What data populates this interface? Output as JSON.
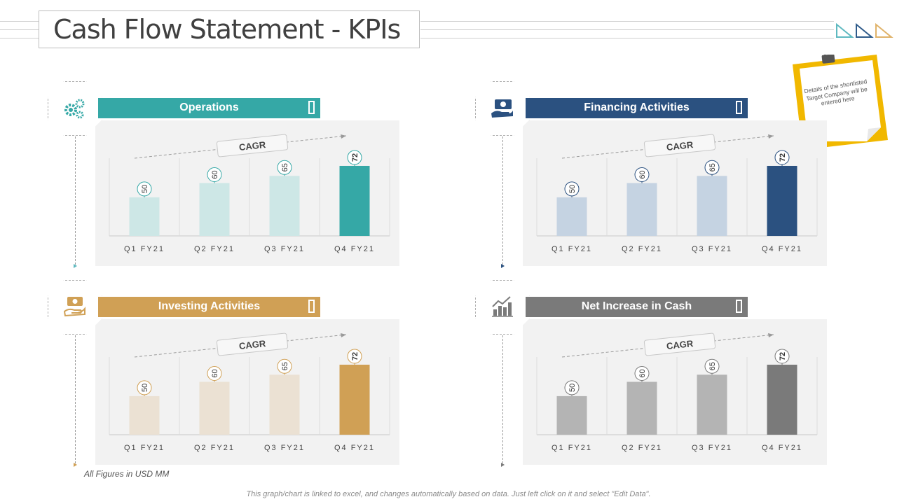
{
  "title": "Cash Flow Statement - KPIs",
  "sticky_note": "Details of the shortlisted Target Company will be entered here",
  "units_note": "All Figures in USD MM",
  "footer_note": "This graph/chart is linked to excel, and changes automatically based on data. Just left click on it and select \"Edit Data\".",
  "decor_colors": [
    "#5fb9c0",
    "#2f5b8a",
    "#e0b36a"
  ],
  "chart_data": [
    {
      "type": "bar",
      "title": "Operations",
      "categories": [
        "Q1 FY21",
        "Q2 FY21",
        "Q3 FY21",
        "Q4 FY21"
      ],
      "values": [
        50,
        60,
        65,
        72
      ],
      "annotation": "CAGR",
      "ylim": [
        0,
        80
      ],
      "color_main": "#35a8a6",
      "color_light": "#cde7e6",
      "icon": "gears-icon"
    },
    {
      "type": "bar",
      "title": "Financing Activities",
      "categories": [
        "Q1 FY21",
        "Q2 FY21",
        "Q3 FY21",
        "Q4 FY21"
      ],
      "values": [
        50,
        60,
        65,
        72
      ],
      "annotation": "CAGR",
      "ylim": [
        0,
        80
      ],
      "color_main": "#2b5180",
      "color_light": "#c5d3e2",
      "icon": "money-hand-icon"
    },
    {
      "type": "bar",
      "title": "Investing Activities",
      "categories": [
        "Q1 FY21",
        "Q2 FY21",
        "Q3 FY21",
        "Q4 FY21"
      ],
      "values": [
        50,
        60,
        65,
        72
      ],
      "annotation": "CAGR",
      "ylim": [
        0,
        80
      ],
      "color_main": "#d0a055",
      "color_light": "#ebe1d3",
      "icon": "coin-hand-icon"
    },
    {
      "type": "bar",
      "title": "Net Increase in Cash",
      "categories": [
        "Q1 FY21",
        "Q2 FY21",
        "Q3 FY21",
        "Q4 FY21"
      ],
      "values": [
        50,
        60,
        65,
        72
      ],
      "annotation": "CAGR",
      "ylim": [
        0,
        80
      ],
      "color_main": "#7a7a7a",
      "color_light": "#b4b4b4",
      "icon": "growth-chart-icon"
    }
  ]
}
